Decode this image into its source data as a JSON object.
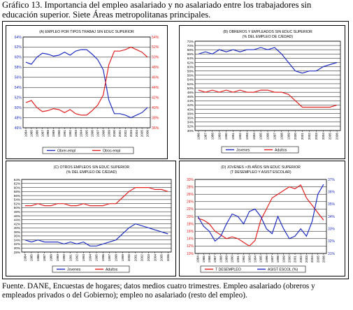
{
  "caption": {
    "line1": "Gráfico 13. Importancia del empleo asalariado  y no asalariado entre los trabajadores sin",
    "line2": "educación superior. Siete Áreas metropolitanas principales."
  },
  "source": {
    "line1": "Fuente. DANE, Encuestas de hogares; datos medios cuatro trimestres. Empleo asalariado (obreros y",
    "line2": "empleados privados o del Gobierno); empleo no asalariado (resto del empleo)."
  },
  "colors": {
    "blue": "#1f2ec0",
    "red": "#e02020",
    "grid": "#000000"
  },
  "chart_data": [
    {
      "type": "line",
      "title": "(A) EMPLEO POR TIPOS  TRABAJ SIN EDUC SUPERIOR",
      "x": [
        1984,
        1985,
        1986,
        1987,
        1988,
        1989,
        1990,
        1991,
        1992,
        1993,
        1994,
        1995,
        1996,
        1997,
        1998,
        1999,
        2000,
        2001,
        2002,
        2003,
        2004,
        2005,
        2006
      ],
      "x_tick_labels": [
        "1984",
        "1985",
        "1986",
        "1987",
        "1988",
        "1989",
        "1990",
        "1991",
        "1992",
        "1993",
        "1994",
        "1995",
        "1996",
        "1997",
        "1998",
        "1999",
        "2000",
        "2001",
        "2002",
        "2003",
        "2004",
        "2005",
        "2006"
      ],
      "ylim_left": [
        46,
        64
      ],
      "ylim_right": [
        36,
        54
      ],
      "y_ticks_left": [
        "46%",
        "48%",
        "50%",
        "52%",
        "54%",
        "56%",
        "58%",
        "60%",
        "62%",
        "64%"
      ],
      "y_ticks_right": [
        "36%",
        "38%",
        "40%",
        "42%",
        "44%",
        "46%",
        "48%",
        "50%",
        "52%",
        "54%"
      ],
      "legend_position": "bottom",
      "series": [
        {
          "name": "Obrer-empl",
          "axis": "left",
          "color": "#1f2ec0",
          "values": [
            59.0,
            58.6,
            60.0,
            60.8,
            60.6,
            60.2,
            60.4,
            61.0,
            60.4,
            61.2,
            61.5,
            61.5,
            60.6,
            59.5,
            57.5,
            51.5,
            48.8,
            48.8,
            48.5,
            48.0,
            48.5,
            49.0,
            50.0
          ]
        },
        {
          "name": "Otros empl",
          "axis": "right",
          "color": "#e02020",
          "values": [
            41.0,
            41.4,
            40.0,
            39.2,
            39.4,
            39.8,
            39.6,
            39.0,
            39.6,
            38.8,
            38.5,
            38.5,
            39.4,
            40.5,
            42.5,
            48.5,
            51.2,
            51.2,
            51.5,
            52.0,
            51.5,
            51.0,
            50.0
          ]
        }
      ]
    },
    {
      "type": "line",
      "title": "(B) OBREROS Y EMPLEADOS SIN EDUC SUPERIOR",
      "subtitle": "(% DEL EMPLEO DE C/EDAD)",
      "x": [
        1986,
        1987,
        1988,
        1989,
        1990,
        1991,
        1992,
        1993,
        1994,
        1995,
        1996,
        1997,
        1998,
        1999,
        2000,
        2001,
        2002,
        2003,
        2004,
        2005,
        2006
      ],
      "x_tick_labels": [
        "1986",
        "1987",
        "1988",
        "1989",
        "1990",
        "1991",
        "1992",
        "1993",
        "1994",
        "1995",
        "1996",
        "1997",
        "1998",
        "1999",
        "2000",
        "2001",
        "2002",
        "2003",
        "2004",
        "2005",
        "2006"
      ],
      "ylim": [
        30,
        72
      ],
      "y_ticks": [
        "30%",
        "32%",
        "34%",
        "36%",
        "38%",
        "40%",
        "42%",
        "44%",
        "46%",
        "48%",
        "50%",
        "52%",
        "54%",
        "56%",
        "58%",
        "60%",
        "62%",
        "64%",
        "66%",
        "68%",
        "70%",
        "72%"
      ],
      "legend_position": "bottom",
      "series": [
        {
          "name": "Jovenes",
          "color": "#1f2ec0",
          "values": [
            66,
            67,
            66,
            68,
            67,
            68,
            67,
            68,
            68,
            69,
            68,
            69,
            66,
            62,
            58,
            57,
            58,
            58,
            60,
            61,
            62
          ]
        },
        {
          "name": "Adultos",
          "color": "#e02020",
          "values": [
            49,
            48,
            49,
            48,
            49,
            48,
            49,
            48,
            48,
            49,
            49,
            48,
            48,
            47,
            44,
            41,
            41,
            41,
            41,
            41,
            42
          ]
        }
      ]
    },
    {
      "type": "line",
      "title": "(C) OTROS EMPLEOS SIN EDUC SUPERIOR",
      "subtitle": "(% DEL EMPLEO DE C/EDAD)",
      "x": [
        1984,
        1985,
        1986,
        1987,
        1988,
        1989,
        1990,
        1991,
        1992,
        1993,
        1994,
        1995,
        1996,
        1997,
        1998,
        1999,
        2000,
        2001,
        2002,
        2003,
        2004,
        2005,
        2006
      ],
      "x_tick_labels": [
        "1984",
        "1985",
        "1986",
        "1987",
        "1988",
        "1989",
        "1990",
        "1991",
        "1992",
        "1993",
        "1994",
        "1995",
        "1996",
        "1997",
        "1998",
        "1999",
        "2000",
        "2001",
        "2002",
        "2003",
        "2004",
        "2005",
        "2006"
      ],
      "ylim": [
        28,
        64
      ],
      "y_ticks": [
        "28%",
        "30%",
        "32%",
        "34%",
        "36%",
        "38%",
        "40%",
        "42%",
        "44%",
        "46%",
        "48%",
        "50%",
        "52%",
        "54%",
        "56%",
        "58%",
        "60%",
        "62%",
        "64%"
      ],
      "legend_position": "bottom",
      "series": [
        {
          "name": "Jovenes",
          "color": "#1f2ec0",
          "values": [
            34,
            33,
            34,
            33,
            33,
            33,
            32,
            33,
            32,
            33,
            31,
            31,
            32,
            33,
            34,
            37,
            40,
            42,
            41,
            40,
            39,
            38,
            37
          ]
        },
        {
          "name": "Adultos",
          "color": "#e02020",
          "values": [
            51,
            51,
            52,
            51,
            51,
            52,
            52,
            51,
            51,
            52,
            51,
            51,
            51,
            52,
            52,
            55,
            58,
            60,
            60,
            60,
            59,
            59,
            58
          ]
        }
      ]
    },
    {
      "type": "line",
      "title": "(D) JOVENES >35 AÑOS SIN EDUC SUPERIOR",
      "subtitle": "(T DESEMPLEO  Y ASIST ESCOLAR)",
      "x": [
        1984,
        1985,
        1986,
        1987,
        1988,
        1989,
        1990,
        1991,
        1992,
        1993,
        1994,
        1995,
        1996,
        1997,
        1998,
        1999,
        2000,
        2001,
        2002,
        2003,
        2004,
        2005,
        2006
      ],
      "x_tick_labels": [
        "1984",
        "1985",
        "1986",
        "1987",
        "1988",
        "1989",
        "1990",
        "1991",
        "1992",
        "1993",
        "1994",
        "1995",
        "1996",
        "1997",
        "1998",
        "1999",
        "2000",
        "2001",
        "2002",
        "2003",
        "2004",
        "2005",
        "2006"
      ],
      "ylim_left": [
        10,
        30
      ],
      "ylim_right": [
        31,
        37
      ],
      "y_ticks_left": [
        "10%",
        "12%",
        "14%",
        "16%",
        "18%",
        "20%",
        "22%",
        "24%",
        "26%",
        "28%",
        "30%"
      ],
      "y_ticks_right": [
        "31%",
        "32%",
        "33%",
        "34%",
        "35%",
        "36%",
        "37%"
      ],
      "legend_position": "bottom",
      "series": [
        {
          "name": "T DESEMPLEO",
          "axis": "left",
          "color": "#e02020",
          "values": [
            19.5,
            19.0,
            18.0,
            16.0,
            15.0,
            14.0,
            14.5,
            14.0,
            13.0,
            12.0,
            13.5,
            19.0,
            22.0,
            25.0,
            26.0,
            27.0,
            28.0,
            27.5,
            28.5,
            25.0,
            23.0,
            21.0,
            19.0
          ]
        },
        {
          "name": "ASIST ESCOL (%)",
          "axis": "right",
          "color": "#1f2ec0",
          "values": [
            34.0,
            33.2,
            32.8,
            32.0,
            32.4,
            33.4,
            34.2,
            34.0,
            33.4,
            34.4,
            34.6,
            34.0,
            33.0,
            32.6,
            34.0,
            33.0,
            32.2,
            32.4,
            33.0,
            32.4,
            33.6,
            35.8,
            36.6
          ]
        }
      ]
    }
  ]
}
